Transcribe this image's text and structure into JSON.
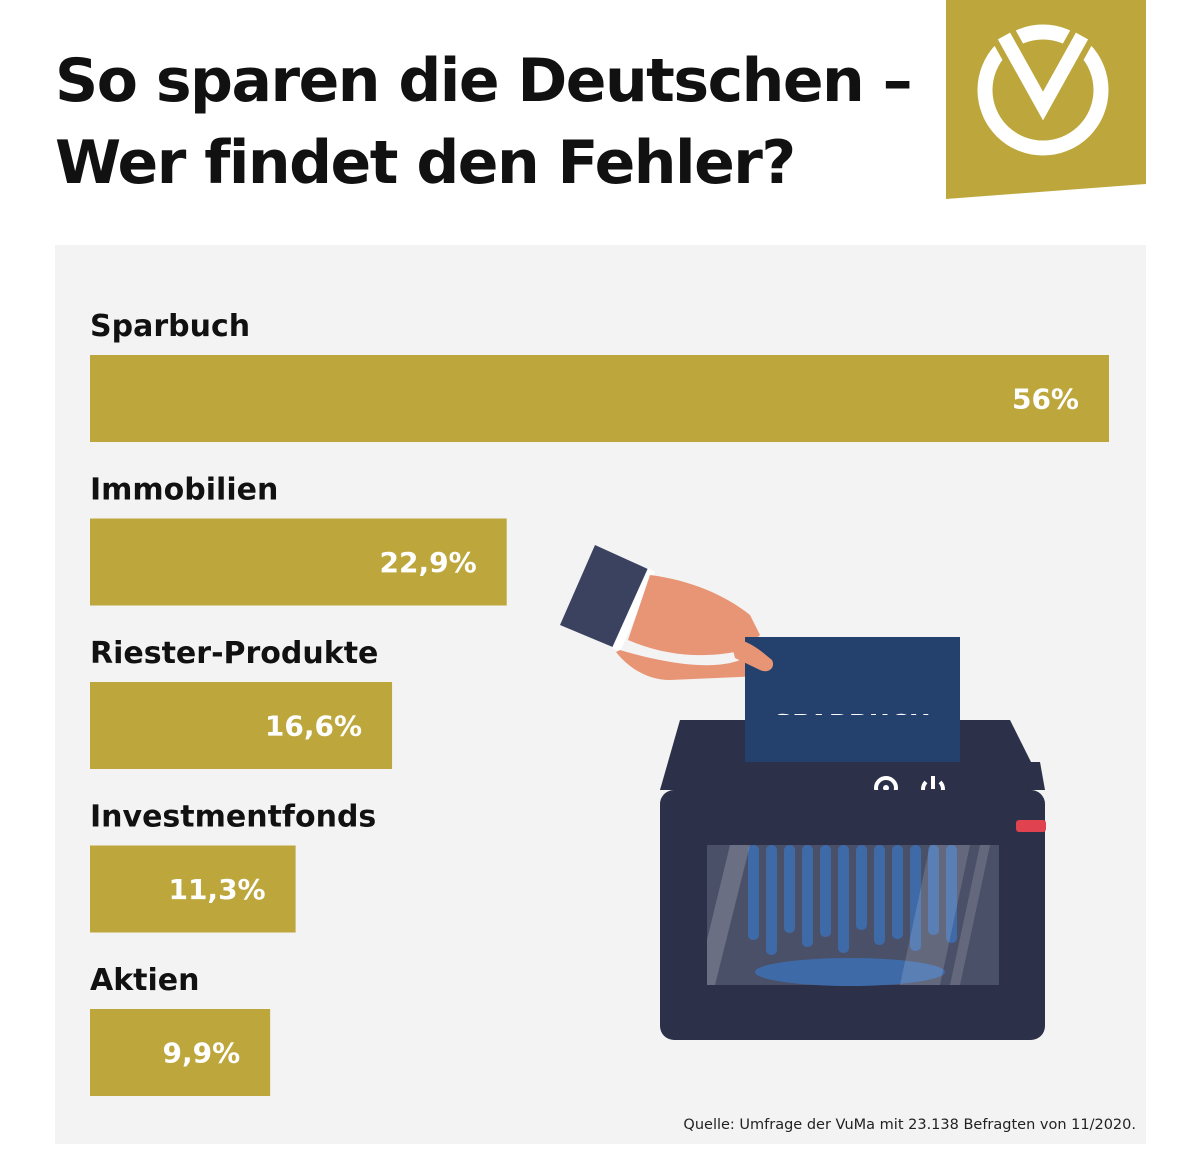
{
  "title": {
    "line1": "So sparen die Deutschen –",
    "line2": "Wer findet den Fehler?"
  },
  "logo": {
    "icon": "sparkasse-s-logo",
    "background": "#bda73c"
  },
  "illustration": {
    "card_text": "SPARBUCH",
    "description_icon": "paper-shredder-icon"
  },
  "colors": {
    "bar": "#bda73c",
    "panel": "#f3f3f3",
    "shredder": "#2c3149",
    "card": "#24406c"
  },
  "chart_data": {
    "type": "bar",
    "orientation": "horizontal",
    "categories": [
      "Sparbuch",
      "Immobilien",
      "Riester-Produkte",
      "Investmentfonds",
      "Aktien"
    ],
    "values": [
      56,
      22.9,
      16.6,
      11.3,
      9.9
    ],
    "value_labels": [
      "56%",
      "22,9%",
      "16,6%",
      "11,3%",
      "9,9%"
    ],
    "unit": "%",
    "xlim": [
      0,
      56
    ],
    "grid": false,
    "legend": "none"
  },
  "source": "Quelle: Umfrage der VuMa mit 23.138 Befragten von 11/2020."
}
